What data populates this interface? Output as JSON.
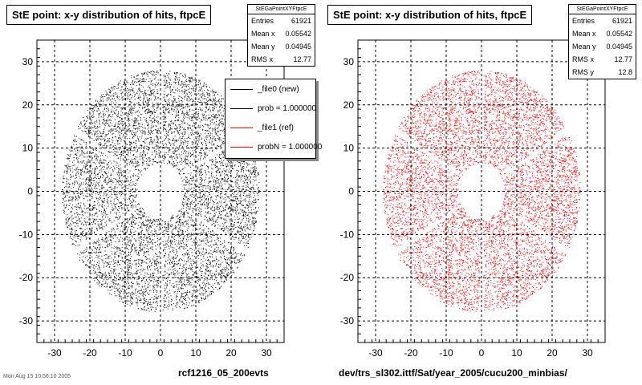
{
  "footer_text": "Mon Aug 15 10:56:10 2005",
  "chart_data": [
    {
      "type": "scatter",
      "title": "StE point: x-y distribution of hits, ftpcE",
      "caption": "rcf1216_05_200evts",
      "xlim": [
        -35,
        35
      ],
      "ylim": [
        -35,
        35
      ],
      "xticks": [
        -30,
        -20,
        -10,
        0,
        10,
        20,
        30
      ],
      "yticks": [
        -30,
        -20,
        -10,
        0,
        10,
        20,
        30
      ],
      "grid": true,
      "color": "#000000",
      "inner_radius": 6.5,
      "outer_radius": 28,
      "entries": 61921,
      "stats": {
        "header": "StEGaPointXYFtpcE",
        "rows": [
          {
            "label": "Entries",
            "value": "61921"
          },
          {
            "label": "Mean x",
            "value": "0.05542"
          },
          {
            "label": "Mean y",
            "value": "0.04945"
          },
          {
            "label": "RMS x",
            "value": "12.77"
          }
        ]
      },
      "legend": {
        "placement": "top-right",
        "entries": [
          {
            "label": "_file0 (new)",
            "color": "#000000"
          },
          {
            "label": "prob = 1.000000",
            "color": "#000000"
          },
          {
            "label": "_file1 (ref)",
            "color": "#ff0000"
          },
          {
            "label": "probN = 1.000000",
            "color": "#ff0000"
          }
        ]
      }
    },
    {
      "type": "scatter",
      "title": "StE point: x-y distribution of hits, ftpcE",
      "caption": "dev/trs_sl302.ittf/Sat/year_2005/cucu200_minbias/",
      "xlim": [
        -35,
        35
      ],
      "ylim": [
        -35,
        35
      ],
      "xticks": [
        -30,
        -20,
        -10,
        0,
        10,
        20,
        30
      ],
      "yticks": [
        -30,
        -20,
        -10,
        0,
        10,
        20,
        30
      ],
      "grid": true,
      "color": "#ff0000",
      "inner_radius": 6.5,
      "outer_radius": 28,
      "entries": 61921,
      "stats": {
        "header": "StEGaPointXYFtpcE",
        "rows": [
          {
            "label": "Entries",
            "value": "61921"
          },
          {
            "label": "Mean x",
            "value": "0.05542"
          },
          {
            "label": "Mean y",
            "value": "0.04945"
          },
          {
            "label": "RMS x",
            "value": "12.77"
          },
          {
            "label": "RMS y",
            "value": "12.8"
          }
        ]
      }
    }
  ]
}
